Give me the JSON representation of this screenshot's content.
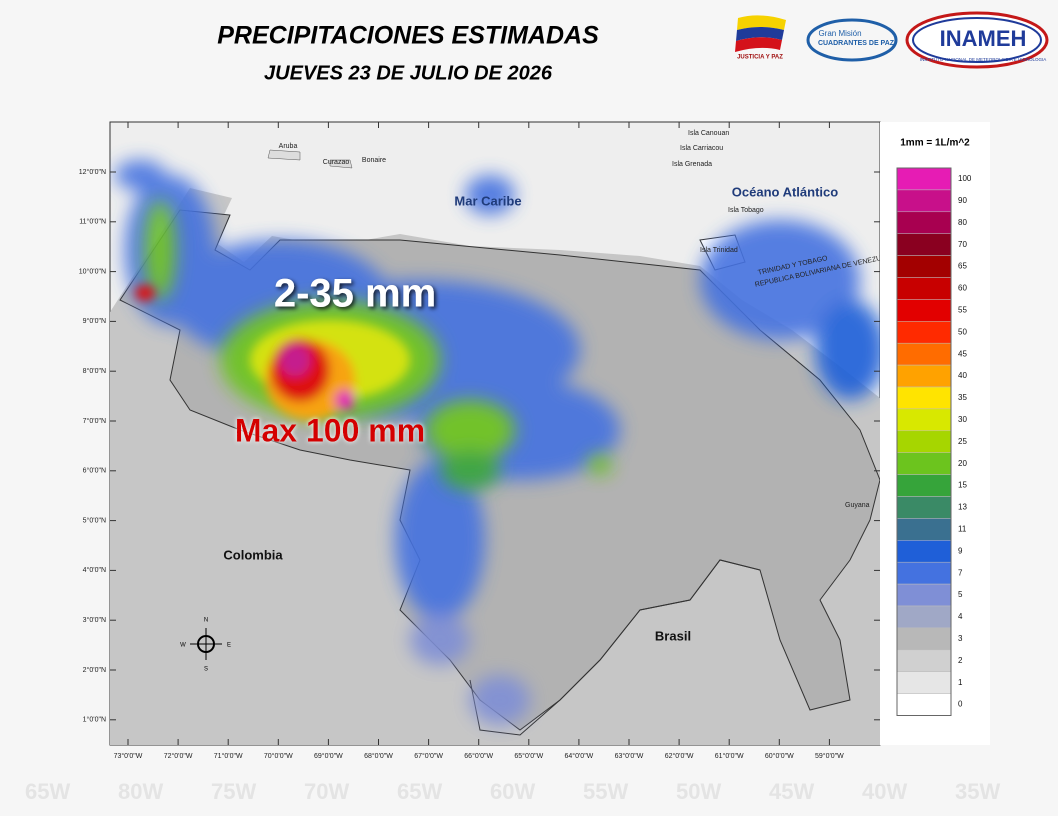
{
  "header": {
    "title": "PRECIPITACIONES ESTIMADAS",
    "subtitle": "JUEVES 23 DE JULIO DE 2026"
  },
  "logos": {
    "justicia": "JUSTICIA Y PAZ",
    "gran_mision": "Gran Misión",
    "cuadrantes": "CUADRANTES DE PAZ",
    "inameh": "INAMEH",
    "inameh_full": "INSTITUTO NACIONAL DE METEOROLOGIA E HIDROLOGIA"
  },
  "map": {
    "lat_ticks": [
      {
        "value": 12,
        "label": "12°0'0\"N"
      },
      {
        "value": 11,
        "label": "11°0'0\"N"
      },
      {
        "value": 10,
        "label": "10°0'0\"N"
      },
      {
        "value": 9,
        "label": "9°0'0\"N"
      },
      {
        "value": 8,
        "label": "8°0'0\"N"
      },
      {
        "value": 7,
        "label": "7°0'0\"N"
      },
      {
        "value": 6,
        "label": "6°0'0\"N"
      },
      {
        "value": 5,
        "label": "5°0'0\"N"
      },
      {
        "value": 4,
        "label": "4°0'0\"N"
      },
      {
        "value": 3,
        "label": "3°0'0\"N"
      },
      {
        "value": 2,
        "label": "2°0'0\"N"
      },
      {
        "value": 1,
        "label": "1°0'0\"N"
      }
    ],
    "lon_ticks": [
      {
        "value": 73,
        "label": "73°0'0\"W"
      },
      {
        "value": 72,
        "label": "72°0'0\"W"
      },
      {
        "value": 71,
        "label": "71°0'0\"W"
      },
      {
        "value": 70,
        "label": "70°0'0\"W"
      },
      {
        "value": 69,
        "label": "69°0'0\"W"
      },
      {
        "value": 68,
        "label": "68°0'0\"W"
      },
      {
        "value": 67,
        "label": "67°0'0\"W"
      },
      {
        "value": 66,
        "label": "66°0'0\"W"
      },
      {
        "value": 65,
        "label": "65°0'0\"W"
      },
      {
        "value": 64,
        "label": "64°0'0\"W"
      },
      {
        "value": 63,
        "label": "63°0'0\"W"
      },
      {
        "value": 62,
        "label": "62°0'0\"W"
      },
      {
        "value": 61,
        "label": "61°0'0\"W"
      },
      {
        "value": 60,
        "label": "60°0'0\"W"
      },
      {
        "value": 59,
        "label": "59°0'0\"W"
      }
    ],
    "places": [
      "Aruba",
      "Curazao",
      "Bonaire",
      "Mar Caribe",
      "Isla Canouan",
      "Isla Carriacou",
      "Isla Grenada",
      "Océano Atlántico",
      "Isla Tobago",
      "Isla Trinidad",
      "TRINIDAD Y TOBAGO",
      "REPUBLICA BOLIVARIANA DE VENEZUELA",
      "Colombia",
      "Brasil",
      "Guyana"
    ],
    "annotations": [
      "2-35 mm",
      "Max 100 mm"
    ],
    "compass": [
      "N",
      "S",
      "E",
      "W"
    ]
  },
  "legend": {
    "title": "1mm = 1L/m^2",
    "items": [
      {
        "value": 100,
        "color": "#e61cb4"
      },
      {
        "value": 90,
        "color": "#c8108a"
      },
      {
        "value": 80,
        "color": "#a80050"
      },
      {
        "value": 70,
        "color": "#8a0020"
      },
      {
        "value": 65,
        "color": "#a30000"
      },
      {
        "value": 60,
        "color": "#c80000"
      },
      {
        "value": 55,
        "color": "#e20000"
      },
      {
        "value": 50,
        "color": "#ff2a00"
      },
      {
        "value": 45,
        "color": "#ff6c00"
      },
      {
        "value": 40,
        "color": "#ffa200"
      },
      {
        "value": 35,
        "color": "#ffe400"
      },
      {
        "value": 30,
        "color": "#d8e800"
      },
      {
        "value": 25,
        "color": "#a6d600"
      },
      {
        "value": 20,
        "color": "#6cc41e"
      },
      {
        "value": 15,
        "color": "#36a43a"
      },
      {
        "value": 13,
        "color": "#3a8a66"
      },
      {
        "value": 11,
        "color": "#3a7090"
      },
      {
        "value": 9,
        "color": "#1f5fd8"
      },
      {
        "value": 7,
        "color": "#4472e0"
      },
      {
        "value": 5,
        "color": "#7f8fd6"
      },
      {
        "value": 4,
        "color": "#a0a8c6"
      },
      {
        "value": 3,
        "color": "#b8b8b8"
      },
      {
        "value": 2,
        "color": "#d0d0d0"
      },
      {
        "value": 1,
        "color": "#e6e6e6"
      },
      {
        "value": 0,
        "color": "#ffffff"
      }
    ]
  },
  "background_labels": [
    "65W",
    "80W",
    "75W",
    "70W",
    "65W",
    "60W",
    "55W",
    "50W",
    "45W",
    "40W",
    "35W"
  ]
}
